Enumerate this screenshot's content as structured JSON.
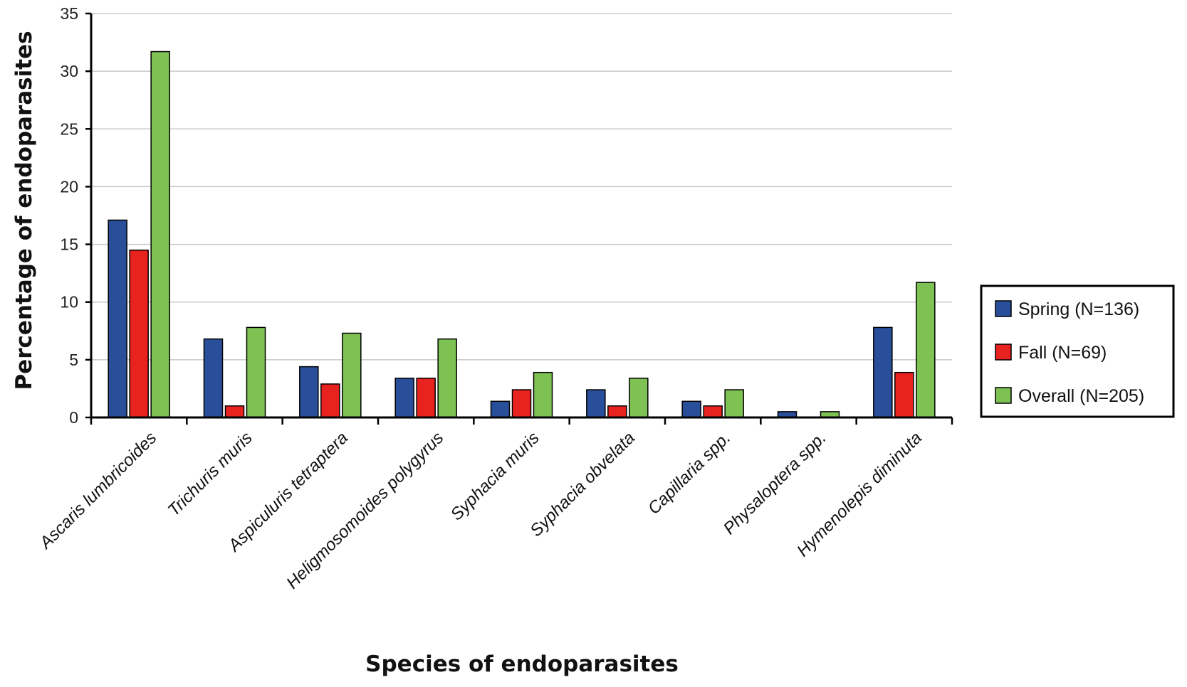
{
  "chart_data": {
    "type": "bar",
    "title": "",
    "xlabel": "Species of endoparasites",
    "ylabel": "Percentage of endoparasites",
    "ylim": [
      0,
      35
    ],
    "yticks": [
      "0",
      "5",
      "10",
      "15",
      "20",
      "25",
      "30",
      "35"
    ],
    "grid": true,
    "legend_position": "right",
    "categories": [
      "Ascaris lumbricoides",
      "Trichuris muris",
      "Aspiculuris tetraptera",
      "Heligmosomoides polygyrus",
      "Syphacia muris",
      "Syphacia obvelata",
      "Capillaria spp.",
      "Physaloptera spp.",
      "Hymenolepis diminuta"
    ],
    "series": [
      {
        "name": "Spring (N=136)",
        "color": "#2a4f9a",
        "values": [
          17.1,
          6.8,
          4.4,
          3.4,
          1.4,
          2.4,
          1.4,
          0.5,
          7.8
        ]
      },
      {
        "name": "Fall (N=69)",
        "color": "#e8221f",
        "values": [
          14.5,
          1.0,
          2.9,
          3.4,
          2.4,
          1.0,
          1.0,
          0.0,
          3.9
        ]
      },
      {
        "name": "Overall (N=205)",
        "color": "#7ec254",
        "values": [
          31.7,
          7.8,
          7.3,
          6.8,
          3.9,
          3.4,
          2.4,
          0.5,
          11.7
        ]
      }
    ]
  }
}
